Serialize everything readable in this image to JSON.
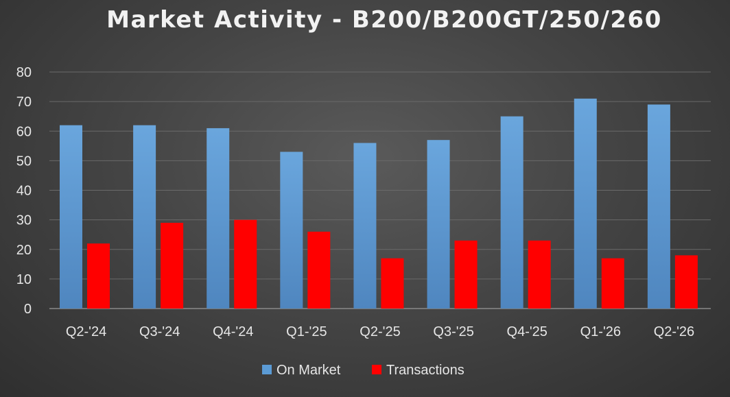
{
  "chart_data": {
    "type": "bar",
    "title": "Market Activity - B200/B200GT/250/260",
    "categories": [
      "Q2-'24",
      "Q3-'24",
      "Q4-'24",
      "Q1-'25",
      "Q2-'25",
      "Q3-'25",
      "Q4-'25",
      "Q1-'26",
      "Q2-'26"
    ],
    "series": [
      {
        "name": "On Market",
        "values": [
          62,
          62,
          61,
          53,
          56,
          57,
          65,
          71,
          69
        ],
        "color": "#5b9bd5"
      },
      {
        "name": "Transactions",
        "values": [
          22,
          29,
          30,
          26,
          17,
          23,
          23,
          17,
          18
        ],
        "color": "#ff0000"
      }
    ],
    "ylim": [
      0,
      80
    ],
    "yticks": [
      0,
      10,
      20,
      30,
      40,
      50,
      60,
      70,
      80
    ],
    "grid": true,
    "legend": "bottom"
  }
}
